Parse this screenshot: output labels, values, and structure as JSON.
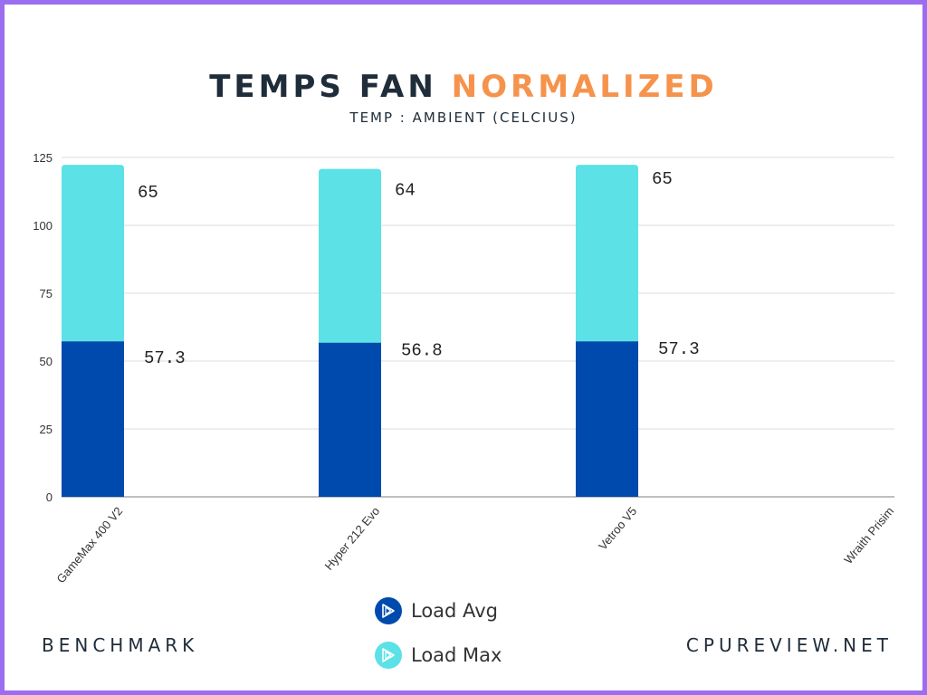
{
  "title": {
    "main": "TEMPS FAN",
    "accent": "NORMALIZED"
  },
  "subtitle": "TEMP : AMBIENT (CELCIUS)",
  "legend": [
    {
      "label": "Load Avg",
      "color": "#004aad"
    },
    {
      "label": "Load Max",
      "color": "#5ce1e6"
    }
  ],
  "footer": {
    "left": "BENCHMARK",
    "right": "CPUREVIEW.NET"
  },
  "chart_data": {
    "type": "bar",
    "stacked": true,
    "categories": [
      "GameMax 400 V2",
      "Hyper 212 Evo",
      "Vetroo V5",
      "Wraith Prisim"
    ],
    "series": [
      {
        "name": "Load Avg",
        "values": [
          57.3,
          56.8,
          57.3,
          null
        ],
        "color": "#004aad"
      },
      {
        "name": "Load Max",
        "values": [
          65,
          64,
          65,
          null
        ],
        "color": "#5ce1e6"
      }
    ],
    "yticks": [
      "0",
      "25",
      "50",
      "75",
      "100",
      "125"
    ],
    "ylim": [
      0,
      125
    ],
    "grid": true,
    "legend_position": "bottom"
  }
}
